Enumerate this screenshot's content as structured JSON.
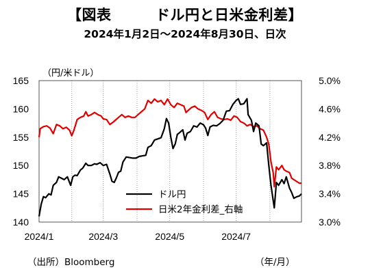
{
  "header": {
    "title": "【図表　　　ドル円と日米金利差】",
    "subtitle": "2024年1月2日～2024年8月30日、日次"
  },
  "footer": {
    "source": "（出所）Bloomberg",
    "x_unit": "（年/月）"
  },
  "chart_data": {
    "type": "line",
    "ylabel_left": "（円/米ドル）",
    "x_tick_labels": [
      "2024/1",
      "2024/3",
      "2024/5",
      "2024/7"
    ],
    "x_range": [
      "2024-01-02",
      "2024-08-30"
    ],
    "y_left": {
      "ticks": [
        "140",
        "145",
        "150",
        "155",
        "160",
        "165"
      ],
      "range": [
        140,
        165
      ]
    },
    "y_right": {
      "ticks": [
        "3.0%",
        "3.4%",
        "3.8%",
        "4.2%",
        "4.6%",
        "5.0%"
      ],
      "range": [
        3.0,
        5.0
      ]
    },
    "grid": "vertical dotted at month starts",
    "legend_position": "bottom-right",
    "series": [
      {
        "name": "ドル円",
        "axis": "left",
        "color": "#000000",
        "points": [
          [
            "2024-01-02",
            141.0
          ],
          [
            "2024-01-04",
            143.2
          ],
          [
            "2024-01-06",
            144.5
          ],
          [
            "2024-01-08",
            144.3
          ],
          [
            "2024-01-11",
            145.0
          ],
          [
            "2024-01-13",
            144.8
          ],
          [
            "2024-01-15",
            146.5
          ],
          [
            "2024-01-18",
            147.0
          ],
          [
            "2024-01-20",
            148.0
          ],
          [
            "2024-01-22",
            147.8
          ],
          [
            "2024-01-25",
            147.5
          ],
          [
            "2024-01-28",
            148.0
          ],
          [
            "2024-01-31",
            146.5
          ],
          [
            "2024-02-02",
            148.0
          ],
          [
            "2024-02-04",
            148.3
          ],
          [
            "2024-02-06",
            148.2
          ],
          [
            "2024-02-09",
            149.2
          ],
          [
            "2024-02-11",
            149.5
          ],
          [
            "2024-02-14",
            150.4
          ],
          [
            "2024-02-16",
            150.0
          ],
          [
            "2024-02-19",
            150.0
          ],
          [
            "2024-02-22",
            150.3
          ],
          [
            "2024-02-24",
            150.2
          ],
          [
            "2024-02-27",
            150.5
          ],
          [
            "2024-03-01",
            150.0
          ],
          [
            "2024-03-04",
            150.2
          ],
          [
            "2024-03-07",
            148.5
          ],
          [
            "2024-03-09",
            147.2
          ],
          [
            "2024-03-11",
            147.0
          ],
          [
            "2024-03-13",
            147.8
          ],
          [
            "2024-03-15",
            148.8
          ],
          [
            "2024-03-17",
            149.0
          ],
          [
            "2024-03-19",
            150.6
          ],
          [
            "2024-03-22",
            151.5
          ],
          [
            "2024-03-25",
            151.4
          ],
          [
            "2024-03-28",
            151.3
          ],
          [
            "2024-03-31",
            151.3
          ],
          [
            "2024-04-03",
            151.6
          ],
          [
            "2024-04-06",
            151.7
          ],
          [
            "2024-04-09",
            151.8
          ],
          [
            "2024-04-11",
            153.2
          ],
          [
            "2024-04-14",
            153.5
          ],
          [
            "2024-04-17",
            154.5
          ],
          [
            "2024-04-20",
            154.7
          ],
          [
            "2024-04-23",
            154.9
          ],
          [
            "2024-04-26",
            156.5
          ],
          [
            "2024-04-28",
            158.3
          ],
          [
            "2024-04-30",
            157.5
          ],
          [
            "2024-05-02",
            155.0
          ],
          [
            "2024-05-04",
            153.0
          ],
          [
            "2024-05-06",
            153.8
          ],
          [
            "2024-05-08",
            155.5
          ],
          [
            "2024-05-10",
            155.8
          ],
          [
            "2024-05-13",
            156.3
          ],
          [
            "2024-05-15",
            154.5
          ],
          [
            "2024-05-17",
            155.7
          ],
          [
            "2024-05-20",
            156.0
          ],
          [
            "2024-05-23",
            157.0
          ],
          [
            "2024-05-26",
            156.8
          ],
          [
            "2024-05-29",
            157.5
          ],
          [
            "2024-06-01",
            157.2
          ],
          [
            "2024-06-03",
            156.6
          ],
          [
            "2024-06-05",
            155.3
          ],
          [
            "2024-06-07",
            156.8
          ],
          [
            "2024-06-10",
            157.1
          ],
          [
            "2024-06-13",
            157.0
          ],
          [
            "2024-06-16",
            157.4
          ],
          [
            "2024-06-19",
            158.0
          ],
          [
            "2024-06-22",
            159.6
          ],
          [
            "2024-06-25",
            159.7
          ],
          [
            "2024-06-28",
            160.8
          ],
          [
            "2024-07-01",
            161.5
          ],
          [
            "2024-07-03",
            161.8
          ],
          [
            "2024-07-05",
            160.8
          ],
          [
            "2024-07-08",
            160.9
          ],
          [
            "2024-07-11",
            161.8
          ],
          [
            "2024-07-12",
            159.0
          ],
          [
            "2024-07-15",
            158.0
          ],
          [
            "2024-07-17",
            156.0
          ],
          [
            "2024-07-19",
            157.5
          ],
          [
            "2024-07-22",
            157.0
          ],
          [
            "2024-07-24",
            153.8
          ],
          [
            "2024-07-26",
            153.5
          ],
          [
            "2024-07-29",
            154.0
          ],
          [
            "2024-07-31",
            150.0
          ],
          [
            "2024-08-02",
            146.5
          ],
          [
            "2024-08-05",
            142.5
          ],
          [
            "2024-08-07",
            147.0
          ],
          [
            "2024-08-09",
            146.5
          ],
          [
            "2024-08-12",
            147.5
          ],
          [
            "2024-08-14",
            146.8
          ],
          [
            "2024-08-16",
            148.0
          ],
          [
            "2024-08-19",
            146.0
          ],
          [
            "2024-08-21",
            145.2
          ],
          [
            "2024-08-23",
            144.2
          ],
          [
            "2024-08-26",
            144.5
          ],
          [
            "2024-08-28",
            144.6
          ],
          [
            "2024-08-30",
            145.0
          ]
        ]
      },
      {
        "name": "日米2年金利差_右軸",
        "axis": "right",
        "color": "#e00000",
        "points": [
          [
            "2024-01-02",
            4.2
          ],
          [
            "2024-01-03",
            4.32
          ],
          [
            "2024-01-06",
            4.35
          ],
          [
            "2024-01-09",
            4.36
          ],
          [
            "2024-01-12",
            4.33
          ],
          [
            "2024-01-15",
            4.25
          ],
          [
            "2024-01-18",
            4.38
          ],
          [
            "2024-01-21",
            4.36
          ],
          [
            "2024-01-24",
            4.32
          ],
          [
            "2024-01-27",
            4.34
          ],
          [
            "2024-01-30",
            4.3
          ],
          [
            "2024-02-01",
            4.22
          ],
          [
            "2024-02-03",
            4.3
          ],
          [
            "2024-02-06",
            4.45
          ],
          [
            "2024-02-09",
            4.48
          ],
          [
            "2024-02-12",
            4.5
          ],
          [
            "2024-02-14",
            4.56
          ],
          [
            "2024-02-16",
            4.5
          ],
          [
            "2024-02-19",
            4.52
          ],
          [
            "2024-02-22",
            4.55
          ],
          [
            "2024-02-25",
            4.52
          ],
          [
            "2024-02-28",
            4.5
          ],
          [
            "2024-03-01",
            4.46
          ],
          [
            "2024-03-04",
            4.45
          ],
          [
            "2024-03-07",
            4.38
          ],
          [
            "2024-03-09",
            4.4
          ],
          [
            "2024-03-12",
            4.44
          ],
          [
            "2024-03-15",
            4.48
          ],
          [
            "2024-03-18",
            4.52
          ],
          [
            "2024-03-21",
            4.48
          ],
          [
            "2024-03-24",
            4.5
          ],
          [
            "2024-03-27",
            4.48
          ],
          [
            "2024-03-30",
            4.48
          ],
          [
            "2024-04-02",
            4.52
          ],
          [
            "2024-04-05",
            4.56
          ],
          [
            "2024-04-08",
            4.6
          ],
          [
            "2024-04-11",
            4.72
          ],
          [
            "2024-04-14",
            4.68
          ],
          [
            "2024-04-17",
            4.74
          ],
          [
            "2024-04-20",
            4.7
          ],
          [
            "2024-04-23",
            4.72
          ],
          [
            "2024-04-26",
            4.66
          ],
          [
            "2024-04-29",
            4.74
          ],
          [
            "2024-05-02",
            4.66
          ],
          [
            "2024-05-05",
            4.62
          ],
          [
            "2024-05-08",
            4.68
          ],
          [
            "2024-05-11",
            4.66
          ],
          [
            "2024-05-14",
            4.64
          ],
          [
            "2024-05-16",
            4.55
          ],
          [
            "2024-05-18",
            4.58
          ],
          [
            "2024-05-21",
            4.62
          ],
          [
            "2024-05-24",
            4.64
          ],
          [
            "2024-05-27",
            4.6
          ],
          [
            "2024-05-30",
            4.58
          ],
          [
            "2024-06-02",
            4.55
          ],
          [
            "2024-06-05",
            4.45
          ],
          [
            "2024-06-08",
            4.52
          ],
          [
            "2024-06-11",
            4.56
          ],
          [
            "2024-06-14",
            4.48
          ],
          [
            "2024-06-17",
            4.46
          ],
          [
            "2024-06-20",
            4.45
          ],
          [
            "2024-06-23",
            4.46
          ],
          [
            "2024-06-26",
            4.44
          ],
          [
            "2024-06-29",
            4.5
          ],
          [
            "2024-07-02",
            4.48
          ],
          [
            "2024-07-05",
            4.42
          ],
          [
            "2024-07-08",
            4.4
          ],
          [
            "2024-07-11",
            4.36
          ],
          [
            "2024-07-14",
            4.38
          ],
          [
            "2024-07-17",
            4.35
          ],
          [
            "2024-07-20",
            4.36
          ],
          [
            "2024-07-23",
            4.32
          ],
          [
            "2024-07-26",
            4.3
          ],
          [
            "2024-07-29",
            4.2
          ],
          [
            "2024-07-31",
            4.1
          ],
          [
            "2024-08-02",
            3.85
          ],
          [
            "2024-08-04",
            3.7
          ],
          [
            "2024-08-05",
            3.5
          ],
          [
            "2024-08-07",
            3.78
          ],
          [
            "2024-08-09",
            3.74
          ],
          [
            "2024-08-12",
            3.8
          ],
          [
            "2024-08-14",
            3.74
          ],
          [
            "2024-08-16",
            3.72
          ],
          [
            "2024-08-19",
            3.7
          ],
          [
            "2024-08-21",
            3.62
          ],
          [
            "2024-08-23",
            3.6
          ],
          [
            "2024-08-26",
            3.57
          ],
          [
            "2024-08-28",
            3.55
          ],
          [
            "2024-08-30",
            3.55
          ]
        ]
      }
    ]
  }
}
